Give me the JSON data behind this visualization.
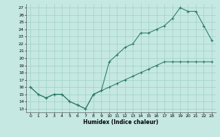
{
  "xlabel": "Humidex (Indice chaleur)",
  "bg_color": "#c5e8e2",
  "grid_color": "#9ecfc6",
  "line_color": "#2d7a6a",
  "xlim": [
    -0.5,
    23.5
  ],
  "ylim": [
    12.5,
    27.5
  ],
  "xticks": [
    0,
    1,
    2,
    3,
    4,
    5,
    6,
    7,
    8,
    9,
    10,
    11,
    12,
    13,
    14,
    15,
    16,
    17,
    18,
    19,
    20,
    21,
    22,
    23
  ],
  "yticks": [
    13,
    14,
    15,
    16,
    17,
    18,
    19,
    20,
    21,
    22,
    23,
    24,
    25,
    26,
    27
  ],
  "line1_x": [
    0,
    1,
    2,
    3,
    4,
    5,
    6,
    7,
    8,
    9,
    10,
    11,
    12,
    13,
    14,
    15,
    16,
    17,
    18,
    19,
    20,
    21,
    22,
    23
  ],
  "line1_y": [
    16.0,
    15.0,
    14.5,
    15.0,
    15.0,
    14.0,
    13.5,
    13.0,
    15.0,
    15.5,
    19.5,
    20.5,
    21.5,
    22.0,
    23.5,
    23.5,
    24.0,
    24.5,
    25.5,
    27.0,
    26.5,
    26.5,
    24.5,
    22.5
  ],
  "line2_x": [
    0,
    1,
    2,
    3,
    4,
    5,
    6,
    7,
    8,
    9,
    10,
    11,
    12,
    13,
    14,
    15,
    16,
    17,
    18,
    19,
    20,
    21,
    22,
    23
  ],
  "line2_y": [
    16.0,
    15.0,
    14.5,
    15.0,
    15.0,
    14.0,
    13.5,
    13.0,
    15.0,
    15.5,
    16.0,
    16.5,
    17.0,
    17.5,
    18.0,
    18.5,
    19.0,
    19.5,
    19.5,
    19.5,
    19.5,
    19.5,
    19.5,
    19.5
  ]
}
